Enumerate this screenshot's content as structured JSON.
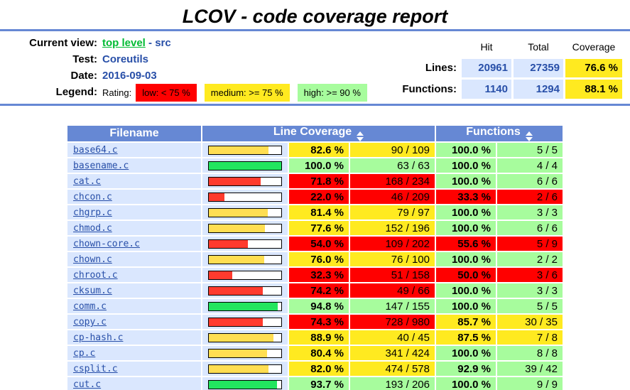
{
  "title": "LCOV - code coverage report",
  "header": {
    "current_view": {
      "label": "Current view:",
      "link": "top level",
      "separator": "-",
      "current": "src"
    },
    "test": {
      "label": "Test:",
      "value": "Coreutils"
    },
    "date": {
      "label": "Date:",
      "value": "2016-09-03"
    },
    "legend": {
      "label": "Legend:",
      "rating_label": "Rating:",
      "items": [
        {
          "text": "low: < 75 %",
          "level": "low",
          "color": "#FF0000"
        },
        {
          "text": "medium: >= 75 %",
          "level": "medium",
          "color": "#FFEA20"
        },
        {
          "text": "high: >= 90 %",
          "level": "high",
          "color": "#A7FC9D"
        }
      ]
    },
    "summary": {
      "columns": {
        "hit": "Hit",
        "total": "Total",
        "coverage": "Coverage"
      },
      "lines": {
        "label": "Lines:",
        "hit": "20961",
        "total": "27359",
        "coverage": "76.6 %",
        "level": "medium"
      },
      "functions": {
        "label": "Functions:",
        "hit": "1140",
        "total": "1294",
        "coverage": "88.1 %",
        "level": "medium"
      }
    }
  },
  "table": {
    "headers": {
      "filename": "Filename",
      "line_coverage": "Line Coverage",
      "functions": "Functions"
    },
    "rows": [
      {
        "file": "base64.c",
        "line_pct": "82.6 %",
        "line_value": 82.6,
        "line_ratio": "90 / 109",
        "line_level": "medium",
        "func_pct": "100.0 %",
        "func_ratio": "5 / 5",
        "func_level": "high"
      },
      {
        "file": "basename.c",
        "line_pct": "100.0 %",
        "line_value": 100.0,
        "line_ratio": "63 / 63",
        "line_level": "high",
        "func_pct": "100.0 %",
        "func_ratio": "4 / 4",
        "func_level": "high"
      },
      {
        "file": "cat.c",
        "line_pct": "71.8 %",
        "line_value": 71.8,
        "line_ratio": "168 / 234",
        "line_level": "low",
        "func_pct": "100.0 %",
        "func_ratio": "6 / 6",
        "func_level": "high"
      },
      {
        "file": "chcon.c",
        "line_pct": "22.0 %",
        "line_value": 22.0,
        "line_ratio": "46 / 209",
        "line_level": "low",
        "func_pct": "33.3 %",
        "func_ratio": "2 / 6",
        "func_level": "low"
      },
      {
        "file": "chgrp.c",
        "line_pct": "81.4 %",
        "line_value": 81.4,
        "line_ratio": "79 / 97",
        "line_level": "medium",
        "func_pct": "100.0 %",
        "func_ratio": "3 / 3",
        "func_level": "high"
      },
      {
        "file": "chmod.c",
        "line_pct": "77.6 %",
        "line_value": 77.6,
        "line_ratio": "152 / 196",
        "line_level": "medium",
        "func_pct": "100.0 %",
        "func_ratio": "6 / 6",
        "func_level": "high"
      },
      {
        "file": "chown-core.c",
        "line_pct": "54.0 %",
        "line_value": 54.0,
        "line_ratio": "109 / 202",
        "line_level": "low",
        "func_pct": "55.6 %",
        "func_ratio": "5 / 9",
        "func_level": "low"
      },
      {
        "file": "chown.c",
        "line_pct": "76.0 %",
        "line_value": 76.0,
        "line_ratio": "76 / 100",
        "line_level": "medium",
        "func_pct": "100.0 %",
        "func_ratio": "2 / 2",
        "func_level": "high"
      },
      {
        "file": "chroot.c",
        "line_pct": "32.3 %",
        "line_value": 32.3,
        "line_ratio": "51 / 158",
        "line_level": "low",
        "func_pct": "50.0 %",
        "func_ratio": "3 / 6",
        "func_level": "low"
      },
      {
        "file": "cksum.c",
        "line_pct": "74.2 %",
        "line_value": 74.2,
        "line_ratio": "49 / 66",
        "line_level": "low",
        "func_pct": "100.0 %",
        "func_ratio": "3 / 3",
        "func_level": "high"
      },
      {
        "file": "comm.c",
        "line_pct": "94.8 %",
        "line_value": 94.8,
        "line_ratio": "147 / 155",
        "line_level": "high",
        "func_pct": "100.0 %",
        "func_ratio": "5 / 5",
        "func_level": "high"
      },
      {
        "file": "copy.c",
        "line_pct": "74.3 %",
        "line_value": 74.3,
        "line_ratio": "728 / 980",
        "line_level": "low",
        "func_pct": "85.7 %",
        "func_ratio": "30 / 35",
        "func_level": "medium"
      },
      {
        "file": "cp-hash.c",
        "line_pct": "88.9 %",
        "line_value": 88.9,
        "line_ratio": "40 / 45",
        "line_level": "medium",
        "func_pct": "87.5 %",
        "func_ratio": "7 / 8",
        "func_level": "medium"
      },
      {
        "file": "cp.c",
        "line_pct": "80.4 %",
        "line_value": 80.4,
        "line_ratio": "341 / 424",
        "line_level": "medium",
        "func_pct": "100.0 %",
        "func_ratio": "8 / 8",
        "func_level": "high"
      },
      {
        "file": "csplit.c",
        "line_pct": "82.0 %",
        "line_value": 82.0,
        "line_ratio": "474 / 578",
        "line_level": "medium",
        "func_pct": "92.9 %",
        "func_ratio": "39 / 42",
        "func_level": "high"
      },
      {
        "file": "cut.c",
        "line_pct": "93.7 %",
        "line_value": 93.7,
        "line_ratio": "193 / 206",
        "line_level": "high",
        "func_pct": "100.0 %",
        "func_ratio": "9 / 9",
        "func_level": "high"
      }
    ]
  },
  "colors": {
    "table_head": "#6688D4",
    "file_cell": "#DAE7FE",
    "level_low": "#FF0000",
    "level_medium": "#FFEA20",
    "level_high": "#A7FC9D",
    "bar_low": "#FF3B2E",
    "bar_medium": "#FFDE52",
    "bar_high": "#22E55F",
    "link_blue": "#284FA8",
    "link_visited_green": "#00BB33"
  }
}
